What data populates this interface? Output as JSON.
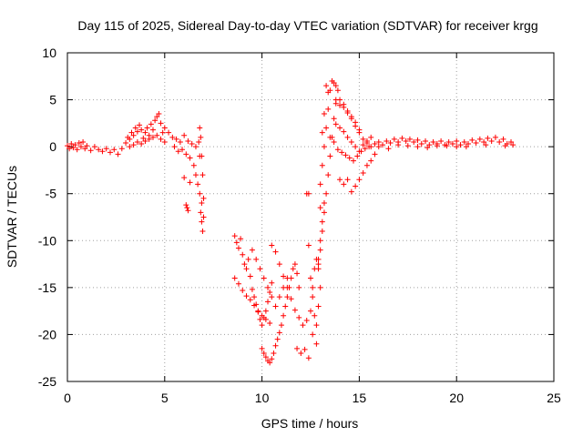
{
  "chart_data": {
    "type": "scatter",
    "title": "Day 115 of 2025, Sidereal Day-to-day VTEC variation (SDTVAR) for receiver krgg",
    "xlabel": "GPS time / hours",
    "ylabel": "SDTVAR / TECUs",
    "xlim": [
      0,
      25
    ],
    "ylim": [
      -25,
      10
    ],
    "xticks": [
      0,
      5,
      10,
      15,
      20,
      25
    ],
    "yticks": [
      -25,
      -20,
      -15,
      -10,
      -5,
      0,
      5,
      10
    ],
    "xtick_labels": [
      "0",
      "5",
      "10",
      "15",
      "20",
      "25"
    ],
    "ytick_labels": [
      "-25",
      "-20",
      "-15",
      "-10",
      "-5",
      "0",
      "5",
      "10"
    ],
    "grid": true,
    "marker": "+",
    "series": [
      {
        "name": "SDTVAR",
        "color": "#ff0000",
        "points": [
          [
            0.0,
            0.1
          ],
          [
            0.1,
            -0.2
          ],
          [
            0.2,
            0.3
          ],
          [
            0.3,
            -0.1
          ],
          [
            0.4,
            0.2
          ],
          [
            0.5,
            -0.3
          ],
          [
            0.6,
            0.4
          ],
          [
            0.7,
            0.0
          ],
          [
            0.8,
            0.5
          ],
          [
            0.9,
            -0.2
          ],
          [
            1.0,
            0.1
          ],
          [
            1.2,
            -0.4
          ],
          [
            1.4,
            0.0
          ],
          [
            1.6,
            -0.3
          ],
          [
            1.8,
            -0.5
          ],
          [
            2.0,
            -0.2
          ],
          [
            2.2,
            -0.6
          ],
          [
            2.4,
            -0.3
          ],
          [
            2.6,
            -0.8
          ],
          [
            2.8,
            -0.2
          ],
          [
            3.0,
            0.4
          ],
          [
            3.1,
            1.0
          ],
          [
            3.2,
            0.8
          ],
          [
            3.3,
            1.5
          ],
          [
            3.4,
            1.2
          ],
          [
            3.5,
            2.0
          ],
          [
            3.6,
            1.6
          ],
          [
            3.7,
            2.3
          ],
          [
            3.8,
            1.8
          ],
          [
            3.9,
            0.9
          ],
          [
            4.0,
            1.5
          ],
          [
            4.1,
            2.0
          ],
          [
            4.2,
            1.2
          ],
          [
            4.3,
            2.4
          ],
          [
            4.4,
            1.8
          ],
          [
            4.5,
            2.8
          ],
          [
            4.6,
            3.2
          ],
          [
            4.7,
            3.5
          ],
          [
            4.8,
            2.5
          ],
          [
            4.9,
            1.5
          ],
          [
            3.2,
            0.0
          ],
          [
            3.4,
            0.2
          ],
          [
            3.6,
            0.5
          ],
          [
            3.8,
            0.3
          ],
          [
            4.0,
            0.6
          ],
          [
            4.2,
            0.8
          ],
          [
            4.4,
            1.0
          ],
          [
            4.6,
            1.2
          ],
          [
            4.8,
            0.8
          ],
          [
            5.0,
            0.5
          ],
          [
            5.0,
            2.0
          ],
          [
            5.2,
            1.5
          ],
          [
            5.4,
            1.0
          ],
          [
            5.6,
            0.8
          ],
          [
            5.8,
            0.5
          ],
          [
            6.0,
            1.2
          ],
          [
            6.2,
            0.6
          ],
          [
            6.4,
            0.3
          ],
          [
            6.6,
            0.0
          ],
          [
            6.8,
            -1.0
          ],
          [
            5.5,
            0.0
          ],
          [
            5.7,
            -0.5
          ],
          [
            5.9,
            -0.3
          ],
          [
            6.1,
            -0.8
          ],
          [
            6.3,
            -1.2
          ],
          [
            6.5,
            -2.0
          ],
          [
            6.6,
            -3.0
          ],
          [
            6.7,
            -4.0
          ],
          [
            6.8,
            -5.0
          ],
          [
            6.9,
            -6.0
          ],
          [
            6.85,
            -7.0
          ],
          [
            6.9,
            -8.0
          ],
          [
            6.95,
            -9.0
          ],
          [
            7.0,
            -7.5
          ],
          [
            7.0,
            -5.5
          ],
          [
            6.95,
            -3.0
          ],
          [
            6.9,
            -1.0
          ],
          [
            6.85,
            1.0
          ],
          [
            6.8,
            2.0
          ],
          [
            6.75,
            0.5
          ],
          [
            6.0,
            -3.3
          ],
          [
            6.1,
            -6.2
          ],
          [
            6.2,
            -6.8
          ],
          [
            6.15,
            -6.5
          ],
          [
            6.3,
            -3.8
          ],
          [
            8.6,
            -9.5
          ],
          [
            8.7,
            -10.2
          ],
          [
            8.8,
            -10.8
          ],
          [
            8.9,
            -9.8
          ],
          [
            9.0,
            -11.5
          ],
          [
            9.1,
            -12.5
          ],
          [
            9.2,
            -13.0
          ],
          [
            9.3,
            -12.0
          ],
          [
            9.4,
            -13.8
          ],
          [
            9.5,
            -15.2
          ],
          [
            9.6,
            -16.0
          ],
          [
            9.7,
            -16.8
          ],
          [
            9.8,
            -17.6
          ],
          [
            9.9,
            -18.4
          ],
          [
            10.0,
            -19.0
          ],
          [
            10.1,
            -18.2
          ],
          [
            10.2,
            -17.5
          ],
          [
            10.3,
            -16.5
          ],
          [
            10.4,
            -15.5
          ],
          [
            10.5,
            -14.5
          ],
          [
            8.6,
            -14.0
          ],
          [
            8.8,
            -14.6
          ],
          [
            9.0,
            -15.3
          ],
          [
            9.2,
            -15.9
          ],
          [
            9.4,
            -16.3
          ],
          [
            9.6,
            -16.9
          ],
          [
            9.8,
            -17.5
          ],
          [
            10.0,
            -18.0
          ],
          [
            10.2,
            -18.4
          ],
          [
            10.4,
            -18.8
          ],
          [
            10.0,
            -21.5
          ],
          [
            10.1,
            -22.0
          ],
          [
            10.2,
            -22.4
          ],
          [
            10.3,
            -22.8
          ],
          [
            10.4,
            -23.0
          ],
          [
            10.5,
            -22.6
          ],
          [
            10.6,
            -22.0
          ],
          [
            10.7,
            -21.2
          ],
          [
            10.8,
            -20.5
          ],
          [
            10.9,
            -19.8
          ],
          [
            11.0,
            -19.0
          ],
          [
            11.1,
            -18.0
          ],
          [
            11.2,
            -17.0
          ],
          [
            11.3,
            -16.0
          ],
          [
            11.4,
            -15.0
          ],
          [
            11.5,
            -14.0
          ],
          [
            11.6,
            -13.0
          ],
          [
            11.7,
            -12.5
          ],
          [
            11.8,
            -13.5
          ],
          [
            11.9,
            -15.0
          ],
          [
            9.5,
            -11.0
          ],
          [
            9.7,
            -12.0
          ],
          [
            9.9,
            -13.0
          ],
          [
            10.1,
            -14.0
          ],
          [
            10.3,
            -15.0
          ],
          [
            10.5,
            -16.0
          ],
          [
            10.7,
            -17.0
          ],
          [
            10.9,
            -16.0
          ],
          [
            11.1,
            -15.0
          ],
          [
            11.3,
            -14.0
          ],
          [
            10.5,
            -10.5
          ],
          [
            10.7,
            -11.2
          ],
          [
            10.9,
            -12.5
          ],
          [
            11.1,
            -13.8
          ],
          [
            11.3,
            -15.0
          ],
          [
            11.5,
            -16.2
          ],
          [
            11.7,
            -17.4
          ],
          [
            11.9,
            -18.2
          ],
          [
            12.1,
            -19.0
          ],
          [
            12.3,
            -18.5
          ],
          [
            11.8,
            -21.5
          ],
          [
            12.0,
            -22.0
          ],
          [
            12.2,
            -21.6
          ],
          [
            12.4,
            -22.5
          ],
          [
            12.6,
            -20.0
          ],
          [
            12.8,
            -21.0
          ],
          [
            12.5,
            -17.5
          ],
          [
            12.6,
            -15.0
          ],
          [
            12.7,
            -13.0
          ],
          [
            12.4,
            -10.5
          ],
          [
            12.5,
            -14.0
          ],
          [
            12.6,
            -16.0
          ],
          [
            12.7,
            -18.0
          ],
          [
            12.8,
            -19.0
          ],
          [
            12.9,
            -17.0
          ],
          [
            13.0,
            -15.0
          ],
          [
            12.9,
            -12.0
          ],
          [
            13.0,
            -10.0
          ],
          [
            13.1,
            -8.0
          ],
          [
            13.2,
            -6.0
          ],
          [
            12.9,
            -13.0
          ],
          [
            13.0,
            -11.0
          ],
          [
            13.1,
            -9.0
          ],
          [
            13.2,
            -7.0
          ],
          [
            13.3,
            -5.0
          ],
          [
            13.4,
            -3.0
          ],
          [
            13.5,
            -1.0
          ],
          [
            13.6,
            1.0
          ],
          [
            13.7,
            3.0
          ],
          [
            13.8,
            5.0
          ],
          [
            13.0,
            -4.0
          ],
          [
            13.1,
            -2.0
          ],
          [
            13.2,
            0.0
          ],
          [
            13.3,
            2.0
          ],
          [
            13.4,
            4.0
          ],
          [
            13.5,
            6.0
          ],
          [
            13.3,
            6.5
          ],
          [
            13.4,
            5.8
          ],
          [
            13.2,
            3.5
          ],
          [
            13.1,
            1.5
          ],
          [
            13.6,
            7.0
          ],
          [
            13.7,
            6.8
          ],
          [
            13.8,
            6.5
          ],
          [
            13.9,
            6.0
          ],
          [
            14.0,
            5.0
          ],
          [
            14.2,
            4.5
          ],
          [
            14.4,
            3.8
          ],
          [
            14.6,
            3.2
          ],
          [
            14.8,
            2.6
          ],
          [
            15.0,
            1.8
          ],
          [
            13.8,
            4.6
          ],
          [
            14.0,
            4.4
          ],
          [
            14.2,
            4.2
          ],
          [
            14.4,
            3.6
          ],
          [
            14.6,
            3.0
          ],
          [
            14.8,
            2.2
          ],
          [
            15.0,
            1.5
          ],
          [
            15.2,
            0.8
          ],
          [
            15.4,
            0.4
          ],
          [
            15.6,
            0.0
          ],
          [
            13.8,
            2.4
          ],
          [
            14.0,
            2.0
          ],
          [
            14.2,
            1.6
          ],
          [
            14.4,
            1.0
          ],
          [
            14.6,
            0.5
          ],
          [
            14.8,
            0.0
          ],
          [
            15.0,
            -0.5
          ],
          [
            15.2,
            0.2
          ],
          [
            15.4,
            0.6
          ],
          [
            15.6,
            1.0
          ],
          [
            13.5,
            1.0
          ],
          [
            13.7,
            0.5
          ],
          [
            13.9,
            -0.3
          ],
          [
            14.1,
            -0.6
          ],
          [
            14.3,
            -0.9
          ],
          [
            14.5,
            -1.2
          ],
          [
            14.7,
            -1.5
          ],
          [
            14.9,
            -1.0
          ],
          [
            15.1,
            -0.5
          ],
          [
            15.3,
            -0.2
          ],
          [
            14.0,
            -3.5
          ],
          [
            14.2,
            -4.0
          ],
          [
            14.4,
            -3.5
          ],
          [
            14.6,
            -4.8
          ],
          [
            14.8,
            -4.2
          ],
          [
            15.0,
            -3.5
          ],
          [
            15.2,
            -2.8
          ],
          [
            15.4,
            -2.0
          ],
          [
            15.6,
            -1.5
          ],
          [
            15.8,
            -0.8
          ],
          [
            12.3,
            -5.0
          ],
          [
            12.4,
            -5.0
          ],
          [
            12.9,
            -12.5
          ],
          [
            13.0,
            -6.5
          ],
          [
            12.8,
            -12.0
          ],
          [
            15.5,
            0.0
          ],
          [
            15.8,
            0.3
          ],
          [
            16.0,
            0.5
          ],
          [
            16.2,
            0.2
          ],
          [
            16.4,
            0.6
          ],
          [
            16.6,
            0.4
          ],
          [
            16.8,
            0.8
          ],
          [
            17.0,
            0.5
          ],
          [
            17.2,
            0.9
          ],
          [
            17.4,
            0.6
          ],
          [
            17.6,
            0.8
          ],
          [
            17.8,
            0.5
          ],
          [
            18.0,
            0.7
          ],
          [
            18.2,
            0.3
          ],
          [
            18.4,
            0.6
          ],
          [
            18.6,
            0.2
          ],
          [
            18.8,
            0.5
          ],
          [
            19.0,
            0.3
          ],
          [
            19.2,
            0.6
          ],
          [
            19.4,
            0.2
          ],
          [
            19.6,
            0.5
          ],
          [
            19.8,
            0.3
          ],
          [
            20.0,
            0.6
          ],
          [
            20.2,
            0.2
          ],
          [
            20.4,
            0.5
          ],
          [
            20.6,
            0.3
          ],
          [
            20.8,
            0.7
          ],
          [
            21.0,
            0.4
          ],
          [
            21.2,
            0.8
          ],
          [
            21.4,
            0.5
          ],
          [
            21.6,
            0.9
          ],
          [
            21.8,
            0.6
          ],
          [
            22.0,
            1.0
          ],
          [
            22.2,
            0.5
          ],
          [
            22.4,
            0.8
          ],
          [
            22.6,
            0.3
          ],
          [
            22.8,
            0.5
          ],
          [
            22.9,
            0.2
          ],
          [
            16.5,
            -0.2
          ],
          [
            17.5,
            0.1
          ],
          [
            18.5,
            -0.1
          ],
          [
            19.5,
            0.1
          ],
          [
            20.5,
            0.0
          ],
          [
            21.5,
            0.2
          ],
          [
            22.5,
            0.1
          ],
          [
            16.0,
            0.0
          ],
          [
            17.0,
            0.2
          ],
          [
            18.0,
            0.0
          ],
          [
            19.0,
            0.1
          ],
          [
            20.0,
            0.0
          ]
        ]
      }
    ]
  }
}
